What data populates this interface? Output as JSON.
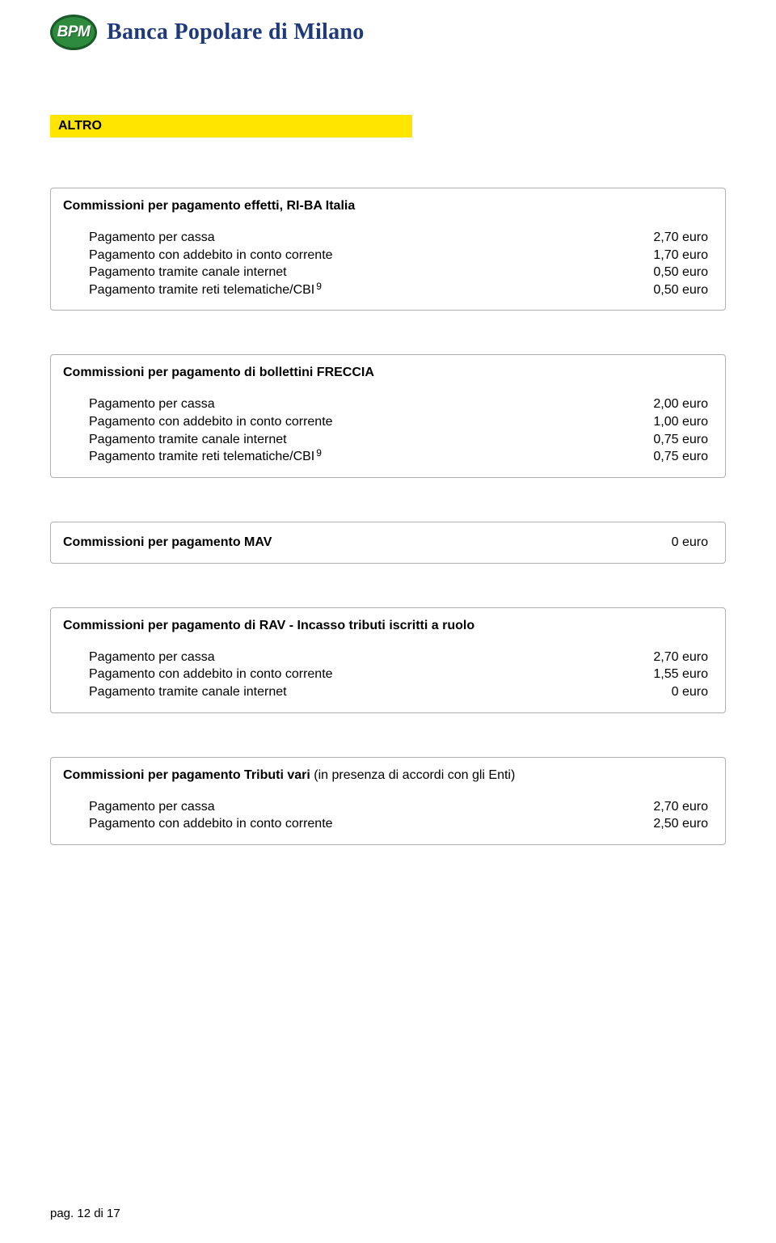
{
  "header": {
    "logo_text": "BPM",
    "bank_name": "Banca Popolare di Milano"
  },
  "section_tag": "ALTRO",
  "boxes": [
    {
      "title": "Commissioni per pagamento effetti, RI-BA Italia",
      "rows": [
        {
          "label": "Pagamento per cassa",
          "value": "2,70 euro"
        },
        {
          "label": "Pagamento con addebito in conto corrente",
          "value": "1,70 euro"
        },
        {
          "label": "Pagamento tramite canale internet",
          "value": "0,50 euro"
        },
        {
          "label": "Pagamento tramite reti telematiche/CBI",
          "sup": "9",
          "value": "0,50 euro"
        }
      ]
    },
    {
      "title": "Commissioni per pagamento di bollettini FRECCIA",
      "rows": [
        {
          "label": "Pagamento per cassa",
          "value": "2,00 euro"
        },
        {
          "label": "Pagamento con addebito in conto corrente",
          "value": "1,00 euro"
        },
        {
          "label": "Pagamento tramite canale internet",
          "value": "0,75 euro"
        },
        {
          "label": "Pagamento tramite reti telematiche/CBI",
          "sup": "9",
          "value": "0,75 euro"
        }
      ]
    }
  ],
  "mav_box": {
    "title": "Commissioni per pagamento MAV",
    "value": "0 euro"
  },
  "rav_box": {
    "title": "Commissioni per pagamento di RAV - Incasso tributi iscritti a ruolo",
    "rows": [
      {
        "label": "Pagamento per cassa",
        "value": "2,70 euro"
      },
      {
        "label": "Pagamento con addebito in conto corrente",
        "value": "1,55 euro"
      },
      {
        "label": "Pagamento tramite canale internet",
        "value": "0 euro"
      }
    ]
  },
  "tributi_box": {
    "title_bold": "Commissioni per pagamento Tributi vari ",
    "title_normal": "(in presenza di accordi con gli Enti)",
    "rows": [
      {
        "label": "Pagamento per cassa",
        "value": "2,70 euro"
      },
      {
        "label": "Pagamento con addebito in conto corrente",
        "value": "2,50 euro"
      }
    ]
  },
  "footer": {
    "page_label": "pag.  12  di  17"
  }
}
